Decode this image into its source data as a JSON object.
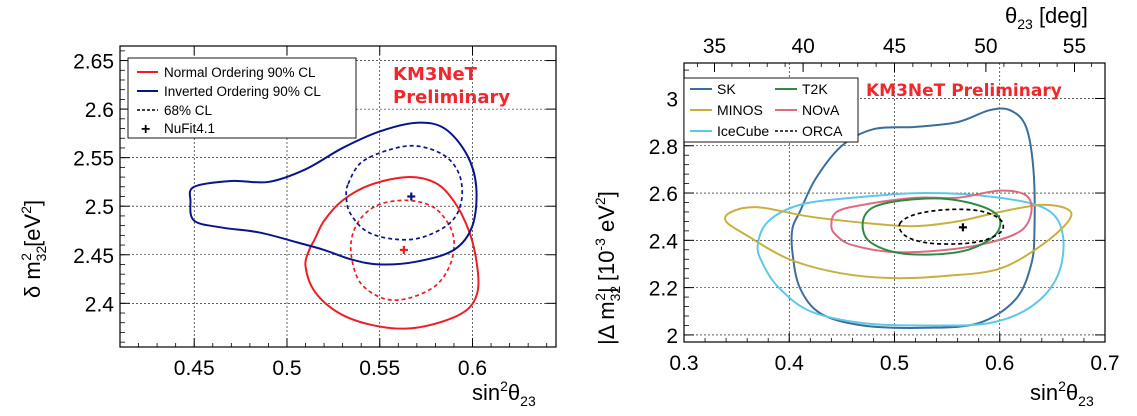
{
  "chart_data": [
    {
      "type": "line",
      "watermark": [
        "KM3NeT",
        "Preliminary"
      ],
      "xlabel": "sin²θ₂₃",
      "ylabel": "δ m²₃₂ [eV²]",
      "xlim": [
        0.41,
        0.645
      ],
      "ylim": [
        2.355,
        2.665
      ],
      "xticks": [
        0.45,
        0.5,
        0.55,
        0.6
      ],
      "xtick_labels": [
        "0.45",
        "0.5",
        "0.55",
        "0.6"
      ],
      "yticks": [
        2.4,
        2.45,
        2.5,
        2.55,
        2.6,
        2.65
      ],
      "ytick_labels": [
        "2.4",
        "2.45",
        "2.5",
        "2.55",
        "2.6",
        "2.65"
      ],
      "grid": true,
      "legend_position": "top-left",
      "legend": [
        {
          "label": "Normal Ordering 90% CL",
          "color": "#ee1c25",
          "style": "solid"
        },
        {
          "label": "Inverted Ordering 90% CL",
          "color": "#0c148c",
          "style": "solid"
        },
        {
          "label": "68% CL",
          "color": "#000000",
          "style": "dashed"
        },
        {
          "label": "NuFit4.1",
          "color": "#000000",
          "style": "marker"
        }
      ],
      "series": [
        {
          "color": "#ee1c25",
          "style": "solid",
          "closed": true,
          "points": [
            [
              0.515,
              2.466
            ],
            [
              0.52,
              2.485
            ],
            [
              0.53,
              2.506
            ],
            [
              0.545,
              2.522
            ],
            [
              0.565,
              2.53
            ],
            [
              0.58,
              2.524
            ],
            [
              0.59,
              2.505
            ],
            [
              0.598,
              2.475
            ],
            [
              0.602,
              2.445
            ],
            [
              0.603,
              2.415
            ],
            [
              0.598,
              2.395
            ],
            [
              0.585,
              2.382
            ],
            [
              0.565,
              2.374
            ],
            [
              0.545,
              2.378
            ],
            [
              0.528,
              2.39
            ],
            [
              0.515,
              2.412
            ],
            [
              0.51,
              2.438
            ],
            [
              0.512,
              2.455
            ]
          ]
        },
        {
          "color": "#ee1c25",
          "style": "dashed",
          "closed": true,
          "points": [
            [
              0.535,
              2.468
            ],
            [
              0.54,
              2.488
            ],
            [
              0.55,
              2.502
            ],
            [
              0.565,
              2.506
            ],
            [
              0.578,
              2.5
            ],
            [
              0.586,
              2.485
            ],
            [
              0.59,
              2.465
            ],
            [
              0.588,
              2.44
            ],
            [
              0.58,
              2.418
            ],
            [
              0.565,
              2.405
            ],
            [
              0.552,
              2.405
            ],
            [
              0.54,
              2.42
            ],
            [
              0.535,
              2.445
            ]
          ]
        },
        {
          "color": "#0c148c",
          "style": "solid",
          "closed": true,
          "points": [
            [
              0.448,
              2.505
            ],
            [
              0.45,
              2.52
            ],
            [
              0.47,
              2.526
            ],
            [
              0.49,
              2.525
            ],
            [
              0.51,
              2.538
            ],
            [
              0.53,
              2.56
            ],
            [
              0.55,
              2.577
            ],
            [
              0.57,
              2.586
            ],
            [
              0.585,
              2.58
            ],
            [
              0.597,
              2.553
            ],
            [
              0.602,
              2.52
            ],
            [
              0.6,
              2.48
            ],
            [
              0.59,
              2.455
            ],
            [
              0.57,
              2.443
            ],
            [
              0.55,
              2.44
            ],
            [
              0.535,
              2.445
            ],
            [
              0.52,
              2.455
            ],
            [
              0.505,
              2.463
            ],
            [
              0.485,
              2.473
            ],
            [
              0.465,
              2.478
            ],
            [
              0.45,
              2.485
            ]
          ]
        },
        {
          "color": "#0c148c",
          "style": "dashed",
          "closed": true,
          "points": [
            [
              0.533,
              2.523
            ],
            [
              0.54,
              2.545
            ],
            [
              0.555,
              2.558
            ],
            [
              0.57,
              2.562
            ],
            [
              0.585,
              2.552
            ],
            [
              0.593,
              2.532
            ],
            [
              0.594,
              2.505
            ],
            [
              0.588,
              2.483
            ],
            [
              0.573,
              2.468
            ],
            [
              0.558,
              2.466
            ],
            [
              0.543,
              2.474
            ],
            [
              0.534,
              2.493
            ],
            [
              0.532,
              2.51
            ]
          ]
        }
      ],
      "markers": [
        {
          "x": 0.563,
          "y": 2.455,
          "color": "#ee1c25",
          "symbol": "+"
        },
        {
          "x": 0.567,
          "y": 2.51,
          "color": "#0c148c",
          "symbol": "+"
        }
      ]
    },
    {
      "type": "line",
      "watermark": [
        "KM3NeT Preliminary"
      ],
      "xlabel": "sin²θ₂₃",
      "ylabel": "|Δ m²₃₂| [10⁻³ eV²]",
      "x2label": "θ₂₃ [deg]",
      "xlim": [
        0.3,
        0.7
      ],
      "ylim": [
        1.97,
        3.15
      ],
      "xticks": [
        0.3,
        0.4,
        0.5,
        0.6,
        0.7
      ],
      "xtick_labels": [
        "0.3",
        "0.4",
        "0.5",
        "0.6",
        "0.7"
      ],
      "yticks": [
        2.0,
        2.2,
        2.4,
        2.6,
        2.8,
        3.0
      ],
      "ytick_labels": [
        "2",
        "2.2",
        "2.4",
        "2.6",
        "2.8",
        "3"
      ],
      "x2ticks": [
        35,
        40,
        45,
        50,
        55
      ],
      "x2tick_labels": [
        "35",
        "40",
        "45",
        "50",
        "55"
      ],
      "grid": true,
      "legend_position": "top-left",
      "legend": [
        {
          "label": "SK",
          "color": "#3c6e9b"
        },
        {
          "label": "T2K",
          "color": "#2e8b45"
        },
        {
          "label": "MINOS",
          "color": "#c8b040"
        },
        {
          "label": "NOvA",
          "color": "#e06a80"
        },
        {
          "label": "IceCube",
          "color": "#5ec8e8"
        },
        {
          "label": "ORCA",
          "color": "#000000",
          "style": "dashed"
        }
      ],
      "series": [
        {
          "color": "#3c6e9b",
          "style": "solid",
          "closed": true,
          "points": [
            [
              0.41,
              2.52
            ],
            [
              0.425,
              2.66
            ],
            [
              0.45,
              2.8
            ],
            [
              0.48,
              2.87
            ],
            [
              0.52,
              2.88
            ],
            [
              0.56,
              2.9
            ],
            [
              0.59,
              2.95
            ],
            [
              0.61,
              2.95
            ],
            [
              0.625,
              2.88
            ],
            [
              0.632,
              2.7
            ],
            [
              0.633,
              2.45
            ],
            [
              0.63,
              2.3
            ],
            [
              0.615,
              2.15
            ],
            [
              0.58,
              2.05
            ],
            [
              0.53,
              2.03
            ],
            [
              0.47,
              2.04
            ],
            [
              0.43,
              2.09
            ],
            [
              0.41,
              2.2
            ],
            [
              0.403,
              2.35
            ],
            [
              0.403,
              2.45
            ]
          ]
        },
        {
          "color": "#5ec8e8",
          "style": "solid",
          "closed": true,
          "points": [
            [
              0.37,
              2.38
            ],
            [
              0.375,
              2.3
            ],
            [
              0.39,
              2.2
            ],
            [
              0.42,
              2.1
            ],
            [
              0.47,
              2.05
            ],
            [
              0.53,
              2.04
            ],
            [
              0.59,
              2.05
            ],
            [
              0.63,
              2.12
            ],
            [
              0.655,
              2.25
            ],
            [
              0.66,
              2.42
            ],
            [
              0.645,
              2.53
            ],
            [
              0.6,
              2.58
            ],
            [
              0.53,
              2.6
            ],
            [
              0.46,
              2.58
            ],
            [
              0.41,
              2.55
            ],
            [
              0.38,
              2.48
            ]
          ]
        },
        {
          "color": "#c8b040",
          "style": "solid",
          "closed": true,
          "points": [
            [
              0.34,
              2.48
            ],
            [
              0.345,
              2.52
            ],
            [
              0.37,
              2.54
            ],
            [
              0.42,
              2.5
            ],
            [
              0.48,
              2.47
            ],
            [
              0.52,
              2.46
            ],
            [
              0.56,
              2.48
            ],
            [
              0.6,
              2.52
            ],
            [
              0.64,
              2.55
            ],
            [
              0.665,
              2.53
            ],
            [
              0.665,
              2.48
            ],
            [
              0.64,
              2.38
            ],
            [
              0.6,
              2.28
            ],
            [
              0.55,
              2.25
            ],
            [
              0.5,
              2.24
            ],
            [
              0.45,
              2.26
            ],
            [
              0.4,
              2.32
            ],
            [
              0.36,
              2.42
            ]
          ]
        },
        {
          "color": "#e06a80",
          "style": "solid",
          "closed": true,
          "points": [
            [
              0.44,
              2.46
            ],
            [
              0.445,
              2.52
            ],
            [
              0.47,
              2.55
            ],
            [
              0.52,
              2.58
            ],
            [
              0.56,
              2.58
            ],
            [
              0.6,
              2.61
            ],
            [
              0.625,
              2.59
            ],
            [
              0.63,
              2.52
            ],
            [
              0.62,
              2.44
            ],
            [
              0.59,
              2.39
            ],
            [
              0.55,
              2.36
            ],
            [
              0.5,
              2.35
            ],
            [
              0.46,
              2.38
            ],
            [
              0.445,
              2.42
            ]
          ]
        },
        {
          "color": "#2e8b45",
          "style": "solid",
          "closed": true,
          "points": [
            [
              0.47,
              2.48
            ],
            [
              0.48,
              2.54
            ],
            [
              0.51,
              2.57
            ],
            [
              0.55,
              2.575
            ],
            [
              0.585,
              2.54
            ],
            [
              0.6,
              2.49
            ],
            [
              0.595,
              2.42
            ],
            [
              0.57,
              2.36
            ],
            [
              0.535,
              2.34
            ],
            [
              0.5,
              2.35
            ],
            [
              0.475,
              2.4
            ]
          ]
        },
        {
          "color": "#000000",
          "style": "dashed",
          "closed": true,
          "points": [
            [
              0.505,
              2.47
            ],
            [
              0.52,
              2.51
            ],
            [
              0.55,
              2.53
            ],
            [
              0.58,
              2.525
            ],
            [
              0.6,
              2.49
            ],
            [
              0.602,
              2.44
            ],
            [
              0.585,
              2.4
            ],
            [
              0.56,
              2.385
            ],
            [
              0.53,
              2.39
            ],
            [
              0.51,
              2.42
            ]
          ]
        }
      ],
      "markers": [
        {
          "x": 0.565,
          "y": 2.455,
          "color": "#000000",
          "symbol": "+"
        }
      ]
    }
  ]
}
